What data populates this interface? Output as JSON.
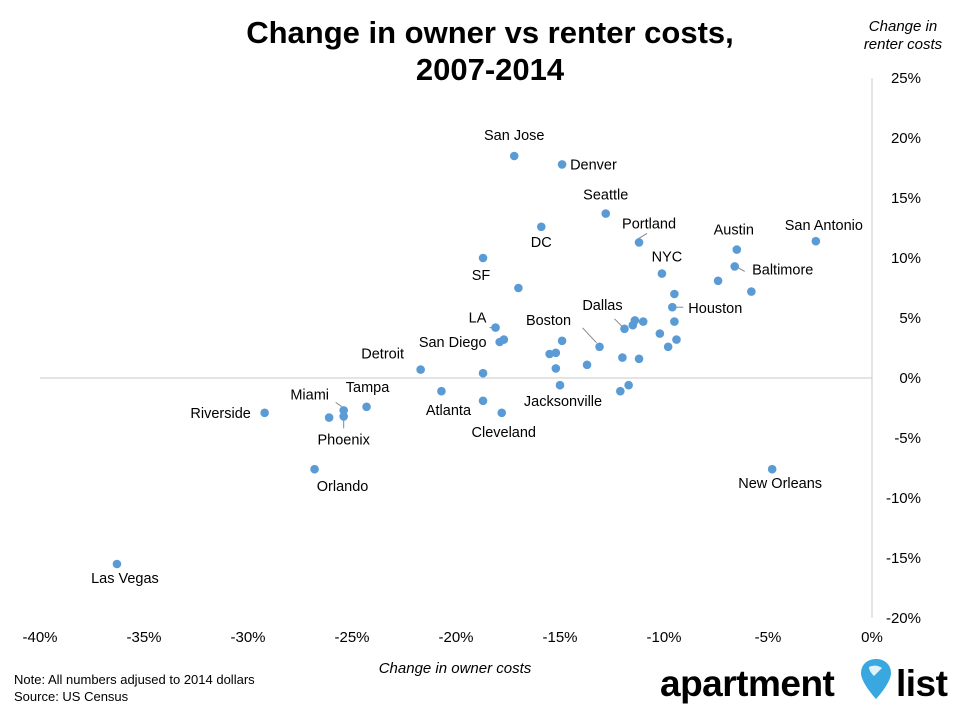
{
  "chart_data": {
    "type": "scatter",
    "title_lines": [
      "Change in owner vs renter costs,",
      "2007-2014"
    ],
    "xlabel": "Change in owner costs",
    "ylabel_lines": [
      "Change in",
      "renter costs"
    ],
    "xlim": [
      -40,
      0
    ],
    "ylim": [
      -20,
      25
    ],
    "x_ticks": [
      "-40%",
      "-35%",
      "-30%",
      "-25%",
      "-20%",
      "-15%",
      "-10%",
      "-5%",
      "0%"
    ],
    "y_ticks": [
      "25%",
      "20%",
      "15%",
      "10%",
      "5%",
      "0%",
      "-5%",
      "-10%",
      "-15%",
      "-20%"
    ],
    "marker_color": "#5b9bd5",
    "grid": false,
    "points": [
      {
        "x": -17.2,
        "y": 18.5,
        "label": "San Jose"
      },
      {
        "x": -14.9,
        "y": 17.8,
        "label": "Denver"
      },
      {
        "x": -12.8,
        "y": 13.7,
        "label": "Seattle"
      },
      {
        "x": -15.9,
        "y": 12.6,
        "label": "DC"
      },
      {
        "x": -11.2,
        "y": 11.3,
        "label": "Portland"
      },
      {
        "x": -6.5,
        "y": 10.7,
        "label": "Austin"
      },
      {
        "x": -2.7,
        "y": 11.4,
        "label": "San Antonio"
      },
      {
        "x": -18.7,
        "y": 10.0,
        "label": "SF"
      },
      {
        "x": -10.1,
        "y": 8.7,
        "label": "NYC"
      },
      {
        "x": -6.6,
        "y": 9.3,
        "label": "Baltimore"
      },
      {
        "x": -7.4,
        "y": 8.1,
        "label": ""
      },
      {
        "x": -5.8,
        "y": 7.2,
        "label": ""
      },
      {
        "x": -17.0,
        "y": 7.5,
        "label": ""
      },
      {
        "x": -9.5,
        "y": 7.0,
        "label": ""
      },
      {
        "x": -9.6,
        "y": 5.9,
        "label": "Houston"
      },
      {
        "x": -11.4,
        "y": 4.8,
        "label": ""
      },
      {
        "x": -11.0,
        "y": 4.7,
        "label": ""
      },
      {
        "x": -11.5,
        "y": 4.4,
        "label": ""
      },
      {
        "x": -11.9,
        "y": 4.1,
        "label": "Dallas"
      },
      {
        "x": -9.5,
        "y": 4.7,
        "label": ""
      },
      {
        "x": -18.1,
        "y": 4.2,
        "label": "LA"
      },
      {
        "x": -17.7,
        "y": 3.2,
        "label": ""
      },
      {
        "x": -17.9,
        "y": 3.0,
        "label": "San Diego"
      },
      {
        "x": -14.9,
        "y": 3.1,
        "label": ""
      },
      {
        "x": -13.1,
        "y": 2.6,
        "label": "Boston"
      },
      {
        "x": -10.2,
        "y": 3.7,
        "label": ""
      },
      {
        "x": -9.4,
        "y": 3.2,
        "label": ""
      },
      {
        "x": -9.8,
        "y": 2.6,
        "label": ""
      },
      {
        "x": -15.2,
        "y": 2.1,
        "label": ""
      },
      {
        "x": -15.5,
        "y": 2.0,
        "label": ""
      },
      {
        "x": -12.0,
        "y": 1.7,
        "label": ""
      },
      {
        "x": -11.2,
        "y": 1.6,
        "label": ""
      },
      {
        "x": -13.7,
        "y": 1.1,
        "label": ""
      },
      {
        "x": -15.2,
        "y": 0.8,
        "label": ""
      },
      {
        "x": -21.7,
        "y": 0.7,
        "label": "Detroit"
      },
      {
        "x": -18.7,
        "y": 0.4,
        "label": ""
      },
      {
        "x": -15.0,
        "y": -0.6,
        "label": "Jacksonville"
      },
      {
        "x": -11.7,
        "y": -0.6,
        "label": ""
      },
      {
        "x": -12.1,
        "y": -1.1,
        "label": ""
      },
      {
        "x": -20.7,
        "y": -1.1,
        "label": "Atlanta"
      },
      {
        "x": -18.7,
        "y": -1.9,
        "label": ""
      },
      {
        "x": -24.3,
        "y": -2.4,
        "label": "Tampa"
      },
      {
        "x": -25.4,
        "y": -2.7,
        "label": "Miami"
      },
      {
        "x": -17.8,
        "y": -2.9,
        "label": "Cleveland"
      },
      {
        "x": -29.2,
        "y": -2.9,
        "label": "Riverside"
      },
      {
        "x": -26.1,
        "y": -3.3,
        "label": ""
      },
      {
        "x": -25.4,
        "y": -3.2,
        "label": "Phoenix"
      },
      {
        "x": -26.8,
        "y": -7.6,
        "label": "Orlando"
      },
      {
        "x": -4.8,
        "y": -7.6,
        "label": "New Orleans"
      },
      {
        "x": -36.3,
        "y": -15.5,
        "label": "Las Vegas"
      }
    ]
  },
  "footer": {
    "note": "Note: All numbers adjused to 2014 dollars",
    "source": "Source: US Census"
  },
  "logo": {
    "text_left": "apartment",
    "text_right": "list",
    "pin_color": "#3aa8e0"
  }
}
